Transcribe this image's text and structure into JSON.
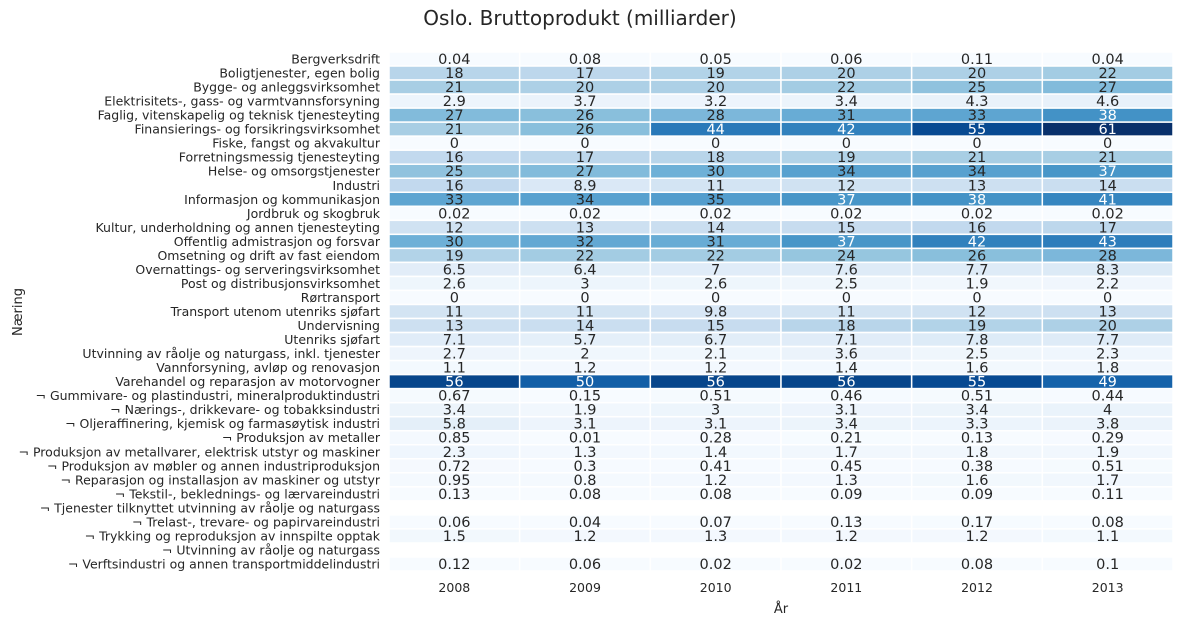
{
  "chart_data": {
    "type": "heatmap",
    "title": "Oslo. Bruttoprodukt (milliarder)",
    "xlabel": "År",
    "ylabel": "Næring",
    "colormap": "Blues",
    "vmin": 0,
    "vmax": 61,
    "x": [
      "2008",
      "2009",
      "2010",
      "2011",
      "2012",
      "2013"
    ],
    "y": [
      "Bergverksdrift",
      "Boligtjenester, egen bolig",
      "Bygge- og anleggsvirksomhet",
      "Elektrisitets-, gass- og varmtvannsforsyning",
      "Faglig, vitenskapelig og teknisk tjenesteyting",
      "Finansierings- og forsikringsvirksomhet",
      "Fiske, fangst og akvakultur",
      "Forretningsmessig tjenesteyting",
      "Helse- og omsorgstjenester",
      "Industri",
      "Informasjon og kommunikasjon",
      "Jordbruk og skogbruk",
      "Kultur, underholdning og annen tjenesteyting",
      "Offentlig admistrasjon og forsvar",
      "Omsetning og drift av fast eiendom",
      "Overnattings- og serveringsvirksomhet",
      "Post og distribusjonsvirksomhet",
      "Rørtransport",
      "Transport utenom utenriks sjøfart",
      "Undervisning",
      "Utenriks sjøfart",
      "Utvinning av råolje og naturgass, inkl. tjenester",
      "Vannforsyning, avløp og renovasjon",
      "Varehandel og reparasjon av motorvogner",
      "¬ Gummivare- og plastindustri, mineralproduktindustri",
      "¬ Nærings-, drikkevare- og tobakksindustri",
      "¬ Oljeraffinering, kjemisk og farmasøytisk industri",
      "¬ Produksjon av metaller",
      "¬ Produksjon av metallvarer, elektrisk utstyr og maskiner",
      "¬ Produksjon av møbler og annen industriproduksjon",
      "¬ Reparasjon og installasjon av maskiner og utstyr",
      "¬ Tekstil-, beklednings- og lærvareindustri",
      "¬ Tjenester tilknyttet utvinning av råolje og naturgass",
      "¬ Trelast-, trevare- og papirvareindustri",
      "¬ Trykking og reproduksjon av innspilte opptak",
      "¬ Utvinning av råolje og naturgass",
      "¬ Verftsindustri og annen transportmiddelindustri"
    ],
    "values": [
      [
        "0.04",
        "0.08",
        "0.05",
        "0.06",
        "0.11",
        "0.04"
      ],
      [
        "18",
        "17",
        "19",
        "20",
        "20",
        "22"
      ],
      [
        "21",
        "20",
        "20",
        "22",
        "25",
        "27"
      ],
      [
        "2.9",
        "3.7",
        "3.2",
        "3.4",
        "4.3",
        "4.6"
      ],
      [
        "27",
        "26",
        "28",
        "31",
        "33",
        "38"
      ],
      [
        "21",
        "26",
        "44",
        "42",
        "55",
        "61"
      ],
      [
        "0",
        "0",
        "0",
        "0",
        "0",
        "0"
      ],
      [
        "16",
        "17",
        "18",
        "19",
        "21",
        "21"
      ],
      [
        "25",
        "27",
        "30",
        "34",
        "34",
        "37"
      ],
      [
        "16",
        "8.9",
        "11",
        "12",
        "13",
        "14"
      ],
      [
        "33",
        "34",
        "35",
        "37",
        "38",
        "41"
      ],
      [
        "0.02",
        "0.02",
        "0.02",
        "0.02",
        "0.02",
        "0.02"
      ],
      [
        "12",
        "13",
        "14",
        "15",
        "16",
        "17"
      ],
      [
        "30",
        "32",
        "31",
        "37",
        "42",
        "43"
      ],
      [
        "19",
        "22",
        "22",
        "24",
        "26",
        "28"
      ],
      [
        "6.5",
        "6.4",
        "7",
        "7.6",
        "7.7",
        "8.3"
      ],
      [
        "2.6",
        "3",
        "2.6",
        "2.5",
        "1.9",
        "2.2"
      ],
      [
        "0",
        "0",
        "0",
        "0",
        "0",
        "0"
      ],
      [
        "11",
        "11",
        "9.8",
        "11",
        "12",
        "13"
      ],
      [
        "13",
        "14",
        "15",
        "18",
        "19",
        "20"
      ],
      [
        "7.1",
        "5.7",
        "6.7",
        "7.1",
        "7.8",
        "7.7"
      ],
      [
        "2.7",
        "2",
        "2.1",
        "3.6",
        "2.5",
        "2.3"
      ],
      [
        "1.1",
        "1.2",
        "1.2",
        "1.4",
        "1.6",
        "1.8"
      ],
      [
        "56",
        "50",
        "56",
        "56",
        "55",
        "49"
      ],
      [
        "0.67",
        "0.15",
        "0.51",
        "0.46",
        "0.51",
        "0.44"
      ],
      [
        "3.4",
        "1.9",
        "3",
        "3.1",
        "3.4",
        "4"
      ],
      [
        "5.8",
        "3.1",
        "3.1",
        "3.4",
        "3.3",
        "3.8"
      ],
      [
        "0.85",
        "0.01",
        "0.28",
        "0.21",
        "0.13",
        "0.29"
      ],
      [
        "2.3",
        "1.3",
        "1.4",
        "1.7",
        "1.8",
        "1.9"
      ],
      [
        "0.72",
        "0.3",
        "0.41",
        "0.45",
        "0.38",
        "0.51"
      ],
      [
        "0.95",
        "0.8",
        "1.2",
        "1.3",
        "1.6",
        "1.7"
      ],
      [
        "0.13",
        "0.08",
        "0.08",
        "0.09",
        "0.09",
        "0.11"
      ],
      [
        null,
        null,
        null,
        null,
        null,
        null
      ],
      [
        "0.06",
        "0.04",
        "0.07",
        "0.13",
        "0.17",
        "0.08"
      ],
      [
        "1.5",
        "1.2",
        "1.3",
        "1.2",
        "1.2",
        "1.1"
      ],
      [
        null,
        null,
        null,
        null,
        null,
        null
      ],
      [
        "0.12",
        "0.06",
        "0.02",
        "0.02",
        "0.08",
        "0.1"
      ]
    ],
    "grid": false,
    "legend": "none"
  }
}
